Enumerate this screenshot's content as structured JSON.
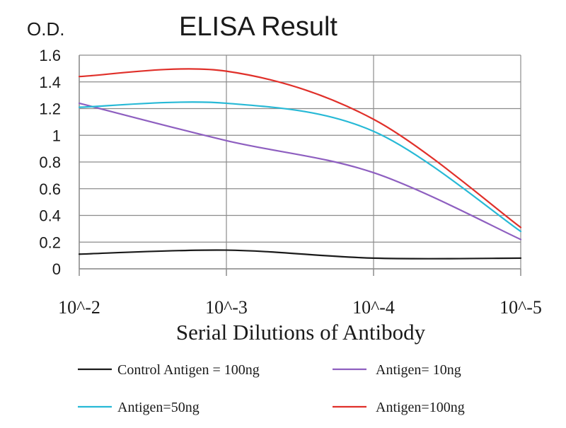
{
  "chart_data": {
    "type": "line",
    "title": "ELISA Result",
    "xlabel": "Serial Dilutions of Antibody",
    "ylabel": "O.D.",
    "x": [
      "10^-2",
      "10^-3",
      "10^-4",
      "10^-5"
    ],
    "ylim": [
      0,
      1.6
    ],
    "yticks": [
      "0",
      "0.2",
      "0.4",
      "0.6",
      "0.8",
      "1",
      "1.2",
      "1.4",
      "1.6"
    ],
    "grid": true,
    "legend_position": "bottom",
    "series": [
      {
        "name": "Control Antigen = 100ng",
        "color": "#1a1a1a",
        "values": [
          0.11,
          0.14,
          0.08,
          0.08
        ]
      },
      {
        "name": "Antigen= 10ng",
        "color": "#8e5fc0",
        "values": [
          1.24,
          0.96,
          0.72,
          0.22
        ]
      },
      {
        "name": "Antigen=50ng",
        "color": "#27b9d6",
        "values": [
          1.21,
          1.24,
          1.03,
          0.28
        ]
      },
      {
        "name": "Antigen=100ng",
        "color": "#e0302a",
        "values": [
          1.44,
          1.48,
          1.12,
          0.31
        ]
      }
    ]
  }
}
